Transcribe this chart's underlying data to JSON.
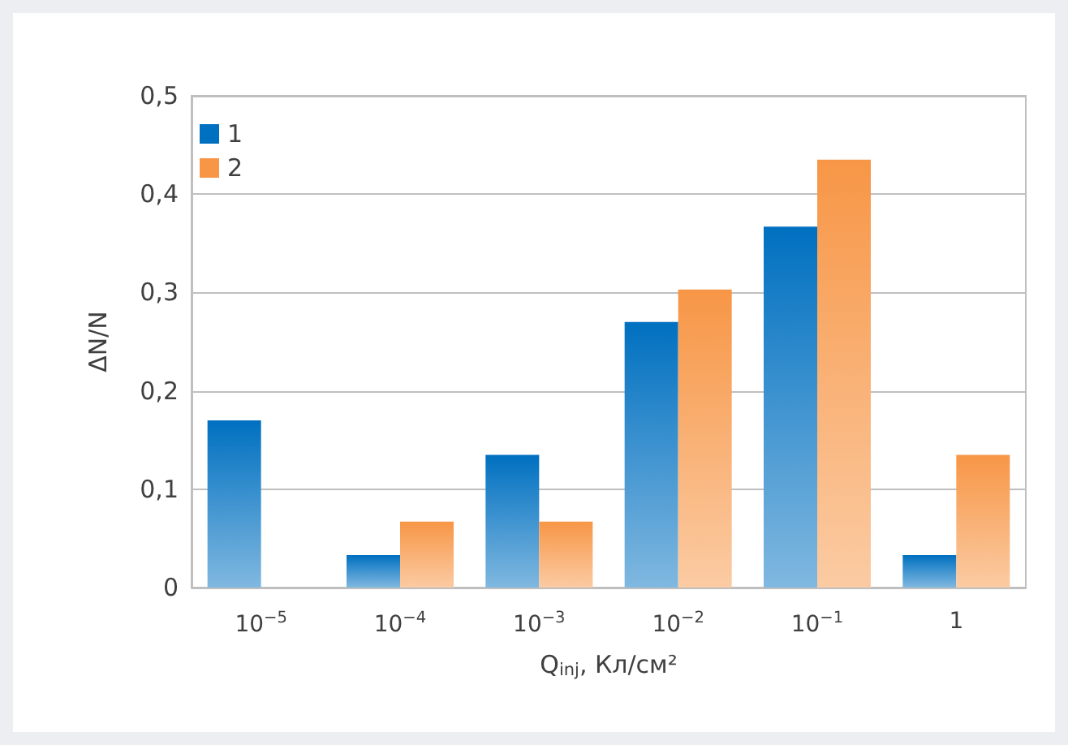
{
  "chart_data": {
    "type": "bar",
    "xlabel": "Q$_{inj}$, Кл/см²",
    "ylabel": "ΔN/N",
    "categories": [
      "10$^{−5}$",
      "10$^{−4}$",
      "10$^{−3}$",
      "10$^{−2}$",
      "10$^{−1}$",
      "1"
    ],
    "series": [
      {
        "name": "1",
        "color": "#0070c0",
        "values": [
          0.17,
          0.033,
          0.135,
          0.27,
          0.367,
          0.033
        ]
      },
      {
        "name": "2",
        "color": "#f79646",
        "values": [
          0,
          0.067,
          0.067,
          0.303,
          0.435,
          0.135
        ]
      }
    ],
    "ylim": [
      0,
      0.5
    ],
    "yticks": [
      0,
      {
        "value": 0.1,
        "label": "0,1"
      },
      {
        "value": 0.2,
        "label": "0,2"
      },
      {
        "value": 0.3,
        "label": "0,3"
      },
      {
        "value": 0.4,
        "label": "0,4"
      },
      {
        "value": 0.5,
        "label": "0,5"
      }
    ],
    "grid": "y",
    "legend": "top left"
  }
}
